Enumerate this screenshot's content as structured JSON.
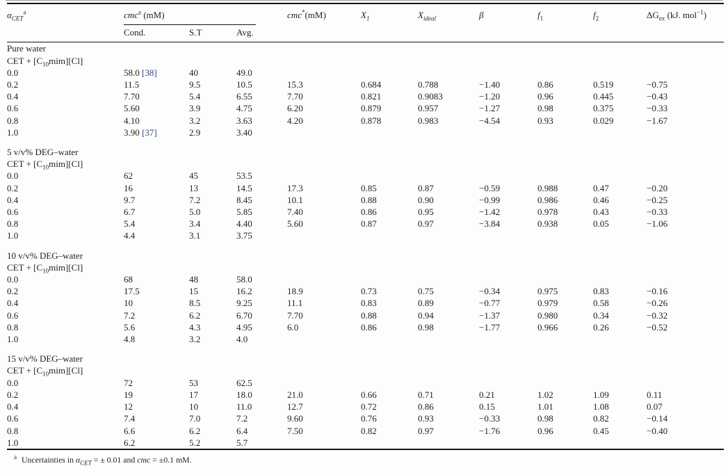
{
  "page": {
    "background": "#fdfdfc",
    "text_color": "#1f1f1f",
    "ref_color": "#32418c"
  },
  "table": {
    "headers": {
      "alpha": {
        "sym": "α",
        "sub": "CET",
        "sup": "a"
      },
      "cmc_group": {
        "it": "cmc",
        "sup": "a",
        "rest": " (mM)"
      },
      "cond": "Cond.",
      "st": "S.T",
      "avg": "Avg.",
      "cmc_star": {
        "it": "cmc",
        "sup": "*",
        "rest": "(mM)"
      },
      "x1": {
        "it": "X",
        "sub": "1"
      },
      "xideal": {
        "it": "X",
        "sub": "ideal"
      },
      "beta": "β",
      "f1": {
        "it": "f",
        "sub": "1"
      },
      "f2": {
        "it": "f",
        "sub": "2"
      },
      "dgex": {
        "pre": "ΔG",
        "sub": "ex",
        "mid": " (kJ. mol",
        "sup": "−1",
        "post": ")"
      }
    },
    "system": {
      "pre": "CET + [C",
      "sub": "10",
      "post": "mim][Cl]"
    },
    "sections": [
      {
        "title": "Pure water",
        "rows": [
          {
            "alpha": "0.0",
            "cond": "58.0",
            "ref": "[38]",
            "st": "40",
            "avg": "49.0",
            "cmc_star": "",
            "x1": "",
            "xideal": "",
            "beta": "",
            "f1": "",
            "f2": "",
            "dgex": ""
          },
          {
            "alpha": "0.2",
            "cond": "11.5",
            "st": "9.5",
            "avg": "10.5",
            "cmc_star": "15.3",
            "x1": "0.684",
            "xideal": "0.788",
            "beta": "−1.40",
            "f1": "0.86",
            "f2": "0.519",
            "dgex": "−0.75"
          },
          {
            "alpha": "0.4",
            "cond": "7.70",
            "st": "5.4",
            "avg": "6.55",
            "cmc_star": "7.70",
            "x1": "0.821",
            "xideal": "0.9083",
            "beta": "−1.20",
            "f1": "0.96",
            "f2": "0.445",
            "dgex": "−0.43"
          },
          {
            "alpha": "0.6",
            "cond": "5.60",
            "st": "3.9",
            "avg": "4.75",
            "cmc_star": "6.20",
            "x1": "0.879",
            "xideal": "0.957",
            "beta": "−1.27",
            "f1": "0.98",
            "f2": "0.375",
            "dgex": "−0.33"
          },
          {
            "alpha": "0.8",
            "cond": "4.10",
            "st": "3.2",
            "avg": "3.63",
            "cmc_star": "4.20",
            "x1": "0.878",
            "xideal": "0.983",
            "beta": "−4.54",
            "f1": "0.93",
            "f2": "0.029",
            "dgex": "−1.67"
          },
          {
            "alpha": "1.0",
            "cond": "3.90",
            "ref": "[37]",
            "st": "2.9",
            "avg": "3.40",
            "cmc_star": "",
            "x1": "",
            "xideal": "",
            "beta": "",
            "f1": "",
            "f2": "",
            "dgex": ""
          }
        ]
      },
      {
        "title": "5 v/v% DEG–water",
        "rows": [
          {
            "alpha": "0.0",
            "cond": "62",
            "st": "45",
            "avg": "53.5",
            "cmc_star": "",
            "x1": "",
            "xideal": "",
            "beta": "",
            "f1": "",
            "f2": "",
            "dgex": ""
          },
          {
            "alpha": "0.2",
            "cond": "16",
            "st": "13",
            "avg": "14.5",
            "cmc_star": "17.3",
            "x1": "0.85",
            "xideal": "0.87",
            "beta": "−0.59",
            "f1": "0.988",
            "f2": "0.47",
            "dgex": "−0.20"
          },
          {
            "alpha": "0.4",
            "cond": "9.7",
            "st": "7.2",
            "avg": "8.45",
            "cmc_star": "10.1",
            "x1": "0.88",
            "xideal": "0.90",
            "beta": "−0.99",
            "f1": "0.986",
            "f2": "0.46",
            "dgex": "−0.25"
          },
          {
            "alpha": "0.6",
            "cond": "6.7",
            "st": "5.0",
            "avg": "5.85",
            "cmc_star": "7.40",
            "x1": "0.86",
            "xideal": "0.95",
            "beta": "−1.42",
            "f1": "0.978",
            "f2": "0.43",
            "dgex": "−0.33"
          },
          {
            "alpha": "0.8",
            "cond": "5.4",
            "st": "3.4",
            "avg": "4.40",
            "cmc_star": "5.60",
            "x1": "0.87",
            "xideal": "0.97",
            "beta": "−3.84",
            "f1": "0.938",
            "f2": "0.05",
            "dgex": "−1.06"
          },
          {
            "alpha": "1.0",
            "cond": "4.4",
            "st": "3.1",
            "avg": "3.75",
            "cmc_star": "",
            "x1": "",
            "xideal": "",
            "beta": "",
            "f1": "",
            "f2": "",
            "dgex": ""
          }
        ]
      },
      {
        "title": "10 v/v% DEG–water",
        "rows": [
          {
            "alpha": "0.0",
            "cond": "68",
            "st": "48",
            "avg": "58.0",
            "cmc_star": "",
            "x1": "",
            "xideal": "",
            "beta": "",
            "f1": "",
            "f2": "",
            "dgex": ""
          },
          {
            "alpha": "0.2",
            "cond": "17.5",
            "st": "15",
            "avg": "16.2",
            "cmc_star": "18.9",
            "x1": "0.73",
            "xideal": "0.75",
            "beta": "−0.34",
            "f1": "0.975",
            "f2": "0.83",
            "dgex": "−0.16"
          },
          {
            "alpha": "0.4",
            "cond": "10",
            "st": "8.5",
            "avg": "9.25",
            "cmc_star": "11.1",
            "x1": "0.83",
            "xideal": "0.89",
            "beta": "−0.77",
            "f1": "0.979",
            "f2": "0.58",
            "dgex": "−0.26"
          },
          {
            "alpha": "0.6",
            "cond": "7.2",
            "st": "6.2",
            "avg": "6.70",
            "cmc_star": "7.70",
            "x1": "0.88",
            "xideal": "0.94",
            "beta": "−1.37",
            "f1": "0.980",
            "f2": "0.34",
            "dgex": "−0.32"
          },
          {
            "alpha": "0.8",
            "cond": "5.6",
            "st": "4.3",
            "avg": "4.95",
            "cmc_star": "6.0",
            "x1": "0.86",
            "xideal": "0.98",
            "beta": "−1.77",
            "f1": "0.966",
            "f2": "0.26",
            "dgex": "−0.52"
          },
          {
            "alpha": "1.0",
            "cond": "4.8",
            "st": "3.2",
            "avg": "4.0",
            "cmc_star": "",
            "x1": "",
            "xideal": "",
            "beta": "",
            "f1": "",
            "f2": "",
            "dgex": ""
          }
        ]
      },
      {
        "title": "15 v/v% DEG–water",
        "rows": [
          {
            "alpha": "0.0",
            "cond": "72",
            "st": "53",
            "avg": "62.5",
            "cmc_star": "",
            "x1": "",
            "xideal": "",
            "beta": "",
            "f1": "",
            "f2": "",
            "dgex": ""
          },
          {
            "alpha": "0.2",
            "cond": "19",
            "st": "17",
            "avg": "18.0",
            "cmc_star": "21.0",
            "x1": "0.66",
            "xideal": "0.71",
            "beta": "0.21",
            "f1": "1.02",
            "f2": "1.09",
            "dgex": "0.11"
          },
          {
            "alpha": "0.4",
            "cond": "12",
            "st": "10",
            "avg": "11.0",
            "cmc_star": "12.7",
            "x1": "0.72",
            "xideal": "0.86",
            "beta": "0.15",
            "f1": "1.01",
            "f2": "1.08",
            "dgex": "0.07"
          },
          {
            "alpha": "0.6",
            "cond": "7.4",
            "st": "7.0",
            "avg": "7.2",
            "cmc_star": "9.60",
            "x1": "0.76",
            "xideal": "0.93",
            "beta": "−0.33",
            "f1": "0.98",
            "f2": "0.82",
            "dgex": "−0.14"
          },
          {
            "alpha": "0.8",
            "cond": "6.6",
            "st": "6.2",
            "avg": "6.4",
            "cmc_star": "7.50",
            "x1": "0.82",
            "xideal": "0.97",
            "beta": "−1.76",
            "f1": "0.96",
            "f2": "0.45",
            "dgex": "−0.40"
          },
          {
            "alpha": "1.0",
            "cond": "6.2",
            "st": "5.2",
            "avg": "5.7",
            "cmc_star": "",
            "x1": "",
            "xideal": "",
            "beta": "",
            "f1": "",
            "f2": "",
            "dgex": ""
          }
        ]
      }
    ],
    "footnote": {
      "sup": "a",
      "text1": "Uncertainties in ",
      "alpha_sym": "α",
      "alpha_sub": "CET",
      "text2": " = ± 0.01 and ",
      "cmc": "cmc",
      "text3": " = ±0.1 mM."
    }
  }
}
